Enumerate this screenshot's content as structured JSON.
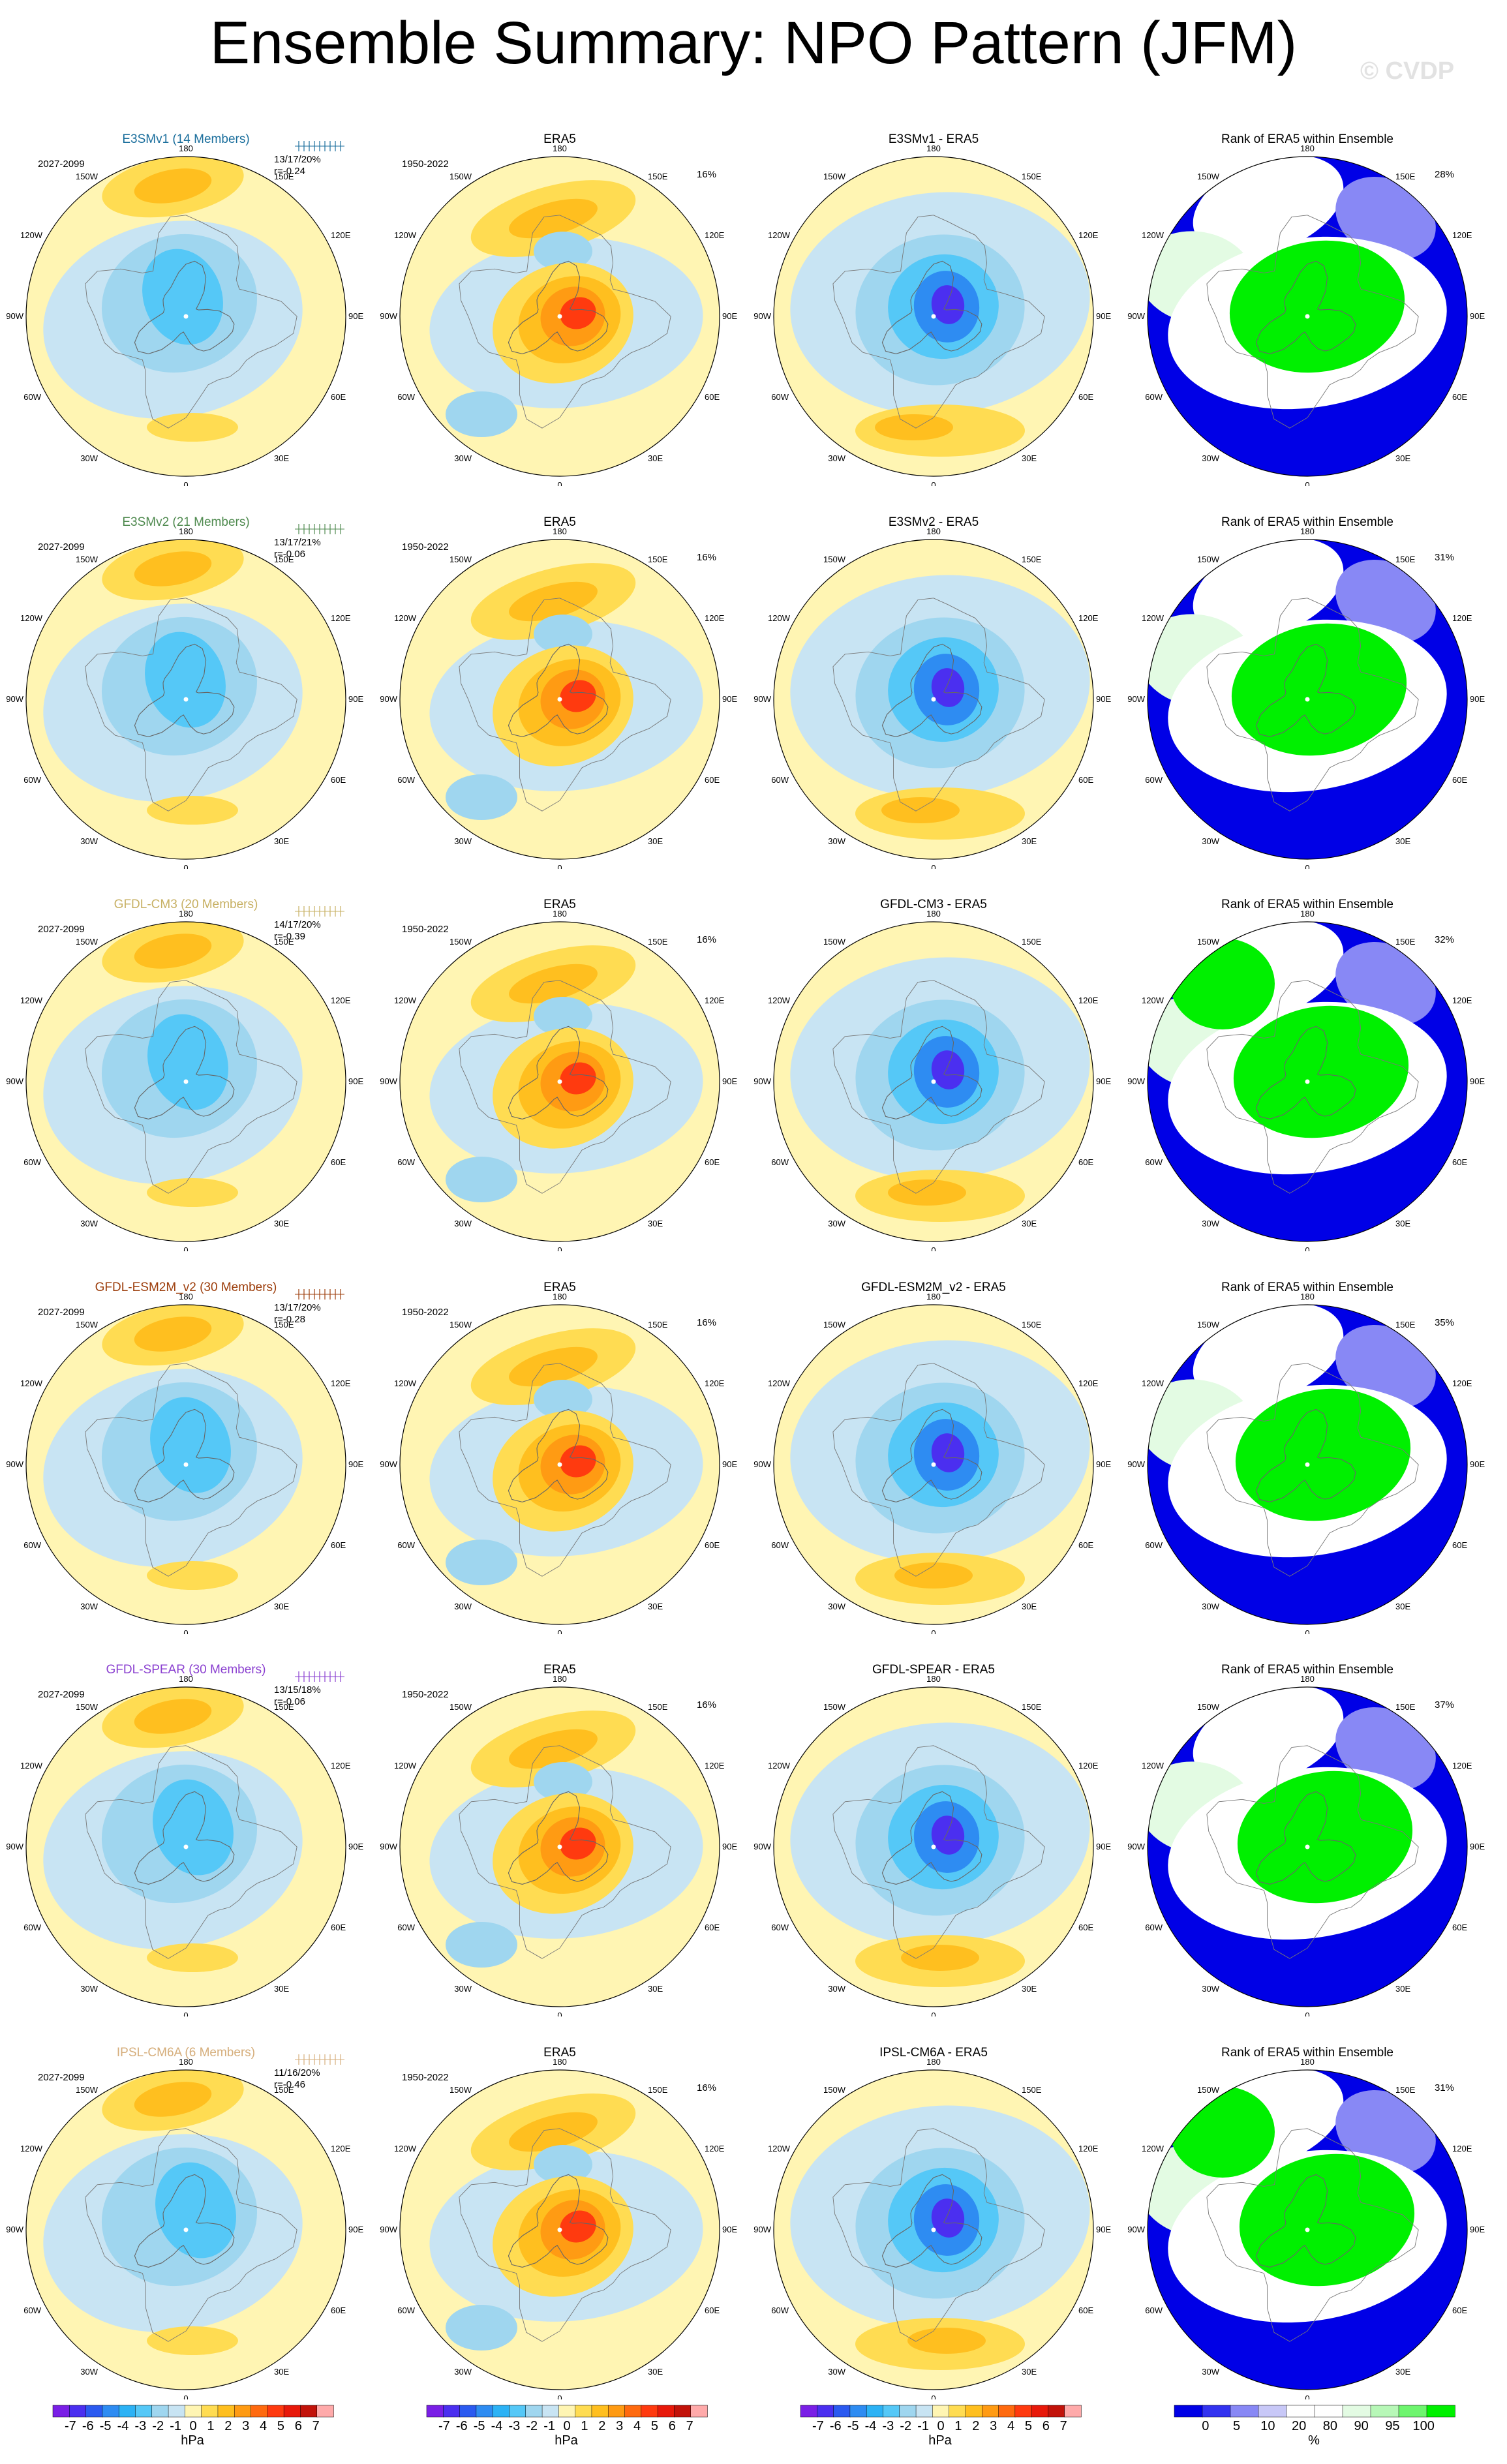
{
  "title": "Ensemble Summary: NPO Pattern (JFM)",
  "watermark": "© CVDP",
  "colors": {
    "model_title": [
      "#1a6e9c",
      "#4f8a4f",
      "#c7b063",
      "#9c3d0b",
      "#8a3fd0",
      "#d5ad7a"
    ],
    "diverging": [
      "#7a1fe6",
      "#4b2ff0",
      "#2b5af0",
      "#2e8cf2",
      "#2cb2f5",
      "#55c8f7",
      "#9fd6ef",
      "#c8e4f3",
      "#fff5b3",
      "#ffdc52",
      "#ffbf1f",
      "#ff9b13",
      "#ff6a0f",
      "#ff3a0f",
      "#e8190a",
      "#c2130a",
      "#ffaaaa"
    ],
    "rank": [
      "#0000e6",
      "#3333f0",
      "#8888f5",
      "#c8c8f7",
      "#ffffff",
      "#ffffff",
      "#e3fbe3",
      "#b7f7b7",
      "#6ef56e",
      "#00f000"
    ]
  },
  "rows": [
    {
      "model": "E3SMv1 (14 Members)",
      "years": "2027-2099",
      "stats1": "13/17/20%",
      "stats2": "r=-0.24",
      "era5_years": "1950-2022",
      "era5_pct": "16%",
      "diff_title": "E3SMv1 - ERA5",
      "rank_pct": "28%"
    },
    {
      "model": "E3SMv2 (21 Members)",
      "years": "2027-2099",
      "stats1": "13/17/21%",
      "stats2": "r=-0.06",
      "era5_years": "1950-2022",
      "era5_pct": "16%",
      "diff_title": "E3SMv2 - ERA5",
      "rank_pct": "31%"
    },
    {
      "model": "GFDL-CM3 (20 Members)",
      "years": "2027-2099",
      "stats1": "14/17/20%",
      "stats2": "r=-0.39",
      "era5_years": "1950-2022",
      "era5_pct": "16%",
      "diff_title": "GFDL-CM3 - ERA5",
      "rank_pct": "32%"
    },
    {
      "model": "GFDL-ESM2M_v2 (30 Members)",
      "years": "2027-2099",
      "stats1": "13/17/20%",
      "stats2": "r=-0.28",
      "era5_years": "1950-2022",
      "era5_pct": "16%",
      "diff_title": "GFDL-ESM2M_v2 - ERA5",
      "rank_pct": "35%"
    },
    {
      "model": "GFDL-SPEAR (30 Members)",
      "years": "2027-2099",
      "stats1": "13/15/18%",
      "stats2": "r=-0.06",
      "era5_years": "1950-2022",
      "era5_pct": "16%",
      "diff_title": "GFDL-SPEAR - ERA5",
      "rank_pct": "37%"
    },
    {
      "model": "IPSL-CM6A (6 Members)",
      "years": "2027-2099",
      "stats1": "11/16/20%",
      "stats2": "r=-0.46",
      "era5_years": "1950-2022",
      "era5_pct": "16%",
      "diff_title": "IPSL-CM6A - ERA5",
      "rank_pct": "31%"
    }
  ],
  "era5_title": "ERA5",
  "rank_title": "Rank of ERA5 within Ensemble",
  "lon_labels": {
    "top": "180",
    "bottom": "0",
    "left": "90W",
    "right": "90E",
    "tl1": "150W",
    "tl2": "120W",
    "bl1": "60W",
    "bl2": "30W",
    "tr1": "150E",
    "tr2": "120E",
    "br1": "60E",
    "br2": "30E"
  },
  "colorbars": [
    {
      "labels": [
        "-7",
        "-6",
        "-5",
        "-4",
        "-3",
        "-2",
        "-1",
        "0",
        "1",
        "2",
        "3",
        "4",
        "5",
        "6",
        "7"
      ],
      "unit": "hPa"
    },
    {
      "labels": [
        "-7",
        "-6",
        "-5",
        "-4",
        "-3",
        "-2",
        "-1",
        "0",
        "1",
        "2",
        "3",
        "4",
        "5",
        "6",
        "7"
      ],
      "unit": "hPa"
    },
    {
      "labels": [
        "-7",
        "-6",
        "-5",
        "-4",
        "-3",
        "-2",
        "-1",
        "0",
        "1",
        "2",
        "3",
        "4",
        "5",
        "6",
        "7"
      ],
      "unit": "hPa"
    },
    {
      "labels": [
        "0",
        "5",
        "10",
        "20",
        "80",
        "90",
        "95",
        "100"
      ],
      "unit": "%"
    }
  ]
}
